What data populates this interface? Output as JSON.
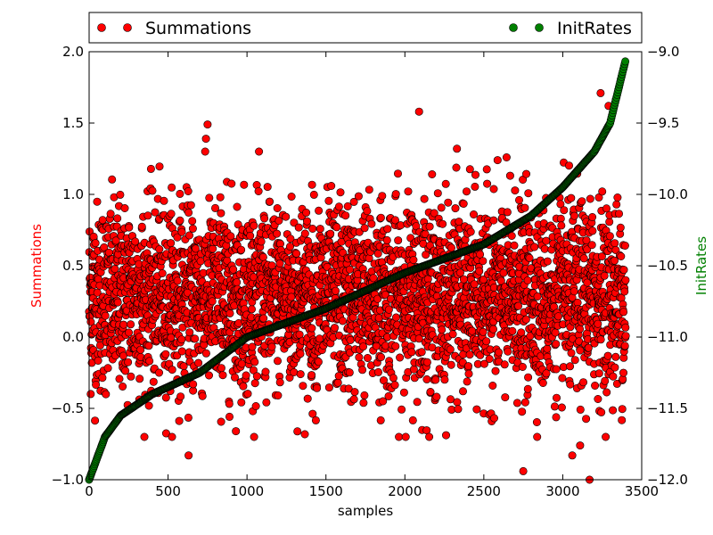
{
  "chart_data": {
    "type": "scatter",
    "xlabel": "samples",
    "ylabel_left": "Summations",
    "ylabel_right": "InitRates",
    "xlim": [
      0,
      3500
    ],
    "ylim_left": [
      -1.0,
      2.0
    ],
    "ylim_right": [
      -12.0,
      -9.0
    ],
    "x_ticks": [
      0,
      500,
      1000,
      1500,
      2000,
      2500,
      3000,
      3500
    ],
    "x_tick_labels": [
      "0",
      "500",
      "1000",
      "1500",
      "2000",
      "2500",
      "3000",
      "3500"
    ],
    "y_left_ticks": [
      -1.0,
      -0.5,
      0.0,
      0.5,
      1.0,
      1.5,
      2.0
    ],
    "y_left_tick_labels": [
      "−1.0",
      "−0.5",
      "0.0",
      "0.5",
      "1.0",
      "1.5",
      "2.0"
    ],
    "y_right_ticks": [
      -12.0,
      -11.5,
      -11.0,
      -10.5,
      -10.0,
      -9.5,
      -9.0
    ],
    "y_right_tick_labels": [
      "−12.0",
      "−11.5",
      "−11.0",
      "−10.5",
      "−10.0",
      "−9.5",
      "−9.0"
    ],
    "grid": false,
    "legend_placement": "top, above plot",
    "series": [
      {
        "name": "Summations",
        "axis": "left",
        "color": "#ff0000",
        "n_points": 3400,
        "notes": "noisy scatter around mean ~0.3 (std ~0.35) across all samples",
        "outliers": [
          {
            "x": 2090,
            "y": 1.58
          },
          {
            "x": 3240,
            "y": 1.71
          },
          {
            "x": 3290,
            "y": 1.62
          },
          {
            "x": 750,
            "y": 1.49
          },
          {
            "x": 740,
            "y": 1.39
          },
          {
            "x": 2330,
            "y": 1.32
          },
          {
            "x": 2750,
            "y": -0.94
          },
          {
            "x": 3170,
            "y": -1.0
          },
          {
            "x": 630,
            "y": -0.83
          },
          {
            "x": 3060,
            "y": -0.83
          },
          {
            "x": 3110,
            "y": -0.76
          }
        ]
      },
      {
        "name": "InitRates",
        "axis": "right",
        "color": "#008000",
        "n_points": 3400,
        "notes": "sorted ascending curve (inverse-CDF shape)",
        "anchors": [
          {
            "x": 0,
            "y": -12.0
          },
          {
            "x": 100,
            "y": -11.7
          },
          {
            "x": 200,
            "y": -11.55
          },
          {
            "x": 400,
            "y": -11.4
          },
          {
            "x": 700,
            "y": -11.25
          },
          {
            "x": 1000,
            "y": -11.0
          },
          {
            "x": 1500,
            "y": -10.8
          },
          {
            "x": 2000,
            "y": -10.55
          },
          {
            "x": 2500,
            "y": -10.35
          },
          {
            "x": 2800,
            "y": -10.15
          },
          {
            "x": 3000,
            "y": -9.95
          },
          {
            "x": 3200,
            "y": -9.7
          },
          {
            "x": 3300,
            "y": -9.5
          },
          {
            "x": 3400,
            "y": -9.05
          }
        ]
      }
    ]
  }
}
